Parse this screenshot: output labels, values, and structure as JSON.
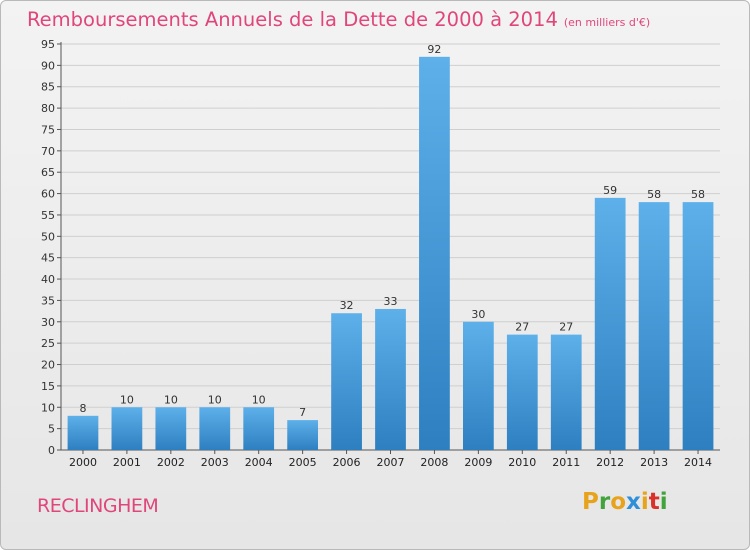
{
  "header": {
    "title": "Remboursements Annuels de la Dette de 2000 à 2014",
    "unit": "(en milliers d'€)"
  },
  "footer": {
    "commune": "RECLINGHEM",
    "logo_letters": [
      "P",
      "r",
      "o",
      "x",
      "i",
      "t",
      "i"
    ],
    "logo_colors": [
      "#e8a31c",
      "#43a33b",
      "#e8a31c",
      "#2f8fd8",
      "#e8a31c",
      "#d9302b",
      "#43a33b"
    ]
  },
  "colors": {
    "title": "#e0467c",
    "bar_top": "#5eb0ea",
    "bar_bottom": "#2d7fc0",
    "grid": "#cfcfcf"
  },
  "chart_data": {
    "type": "bar",
    "categories": [
      "2000",
      "2001",
      "2002",
      "2003",
      "2004",
      "2005",
      "2006",
      "2007",
      "2008",
      "2009",
      "2010",
      "2011",
      "2012",
      "2013",
      "2014"
    ],
    "values": [
      8,
      10,
      10,
      10,
      10,
      7,
      32,
      33,
      92,
      30,
      27,
      27,
      59,
      58,
      58
    ],
    "title": "Remboursements Annuels de la Dette de 2000 à 2014",
    "xlabel": "",
    "ylabel": "",
    "ylim": [
      0,
      95
    ],
    "yticks": [
      0,
      5,
      10,
      15,
      20,
      25,
      30,
      35,
      40,
      45,
      50,
      55,
      60,
      65,
      70,
      75,
      80,
      85,
      90,
      95
    ],
    "grid": true,
    "data_labels": true
  }
}
